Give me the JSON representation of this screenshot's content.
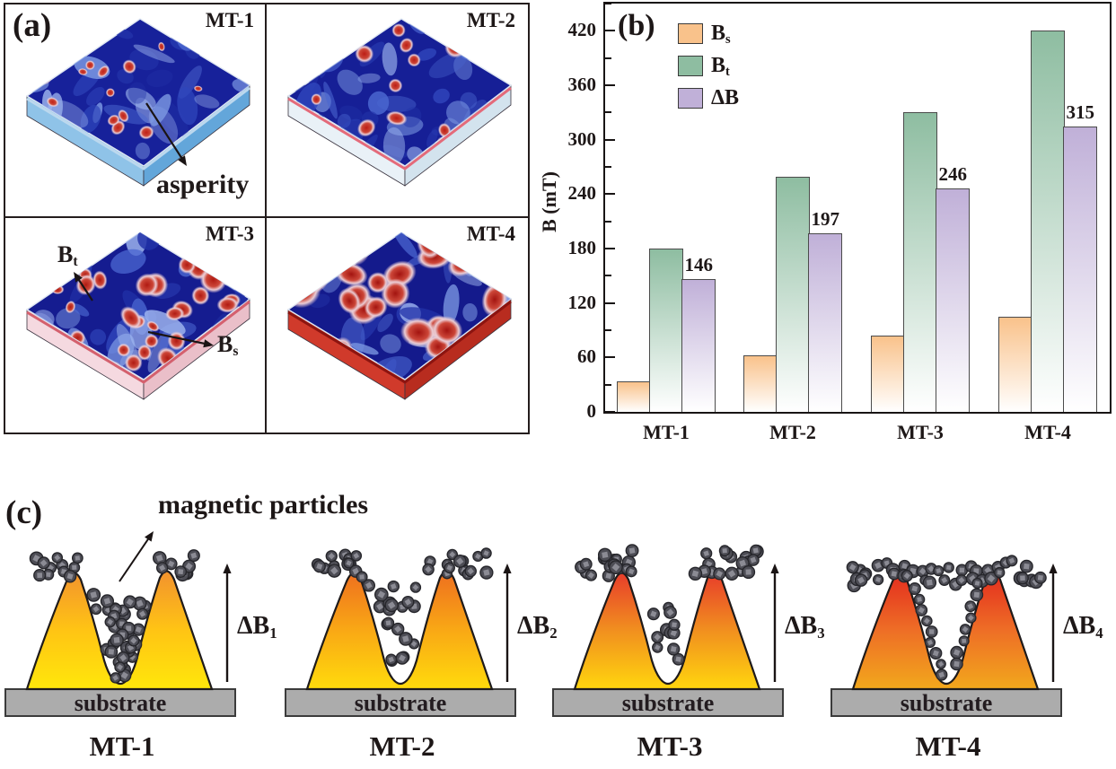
{
  "panel_a": {
    "label": "(a)",
    "annotations": {
      "asperity": "asperity",
      "bt": {
        "base": "B",
        "sub": "t"
      },
      "bs": {
        "base": "B",
        "sub": "s"
      }
    },
    "samples": [
      {
        "label": "MT-1",
        "top_base": "#17219A",
        "side_left": "#8fc3e8",
        "side_right": "#63a6da",
        "rim": "#bcd8ee",
        "spot_count": 16,
        "spot_min": 5,
        "spot_max": 10,
        "red_core": "#c02018",
        "seed": 11
      },
      {
        "label": "MT-2",
        "top_base": "#161F96",
        "side_left": "#e9f1f7",
        "side_right": "#d3e3ee",
        "rim": "#e46a7a",
        "spot_count": 24,
        "spot_min": 6,
        "spot_max": 13,
        "red_core": "#bc1d15",
        "seed": 22
      },
      {
        "label": "MT-3",
        "top_base": "#151C90",
        "side_left": "#f5d9e0",
        "side_right": "#eabfc9",
        "rim": "#d4606e",
        "spot_count": 32,
        "spot_min": 7,
        "spot_max": 15,
        "red_core": "#b01a12",
        "seed": 33
      },
      {
        "label": "MT-4",
        "top_base": "#141A8C",
        "side_left": "#d03a2b",
        "side_right": "#b82c1f",
        "rim": "#8c1410",
        "spot_count": 26,
        "spot_min": 10,
        "spot_max": 21,
        "red_core": "#a31410",
        "seed": 44
      }
    ]
  },
  "panel_b": {
    "label": "(b)",
    "ylabel": "B (mT)",
    "ylim": [
      0,
      450
    ],
    "yticks": [
      0,
      60,
      120,
      180,
      240,
      300,
      360,
      420
    ],
    "categories": [
      "MT-1",
      "MT-2",
      "MT-3",
      "MT-4"
    ],
    "legend": [
      {
        "base": "B",
        "sub": "s",
        "color": "#F9C28B"
      },
      {
        "base": "B",
        "sub": "t",
        "color": "#8EBDA1"
      },
      {
        "base": "ΔB",
        "sub": "",
        "color": "#C0B0D8"
      }
    ],
    "series": [
      {
        "name": "Bs",
        "color": "#F9C28B",
        "values": [
          34,
          62,
          84,
          105
        ]
      },
      {
        "name": "Bt",
        "color": "#8EBDA1",
        "values": [
          180,
          259,
          330,
          420
        ]
      },
      {
        "name": "dB",
        "color": "#C0B0D8",
        "values": [
          146,
          197,
          246,
          315
        ]
      }
    ],
    "data_labels": [
      "146",
      "197",
      "246",
      "315"
    ]
  },
  "panel_c": {
    "label": "(c)",
    "annotation": "magnetic particles",
    "substrate_label": "substrate",
    "items": [
      {
        "label": "MT-1",
        "delta_base": "ΔB",
        "delta_sub": "1",
        "gradient": [
          "#F2922E",
          "#FFC414",
          "#FFE70B"
        ],
        "variant": 0,
        "seed": 7
      },
      {
        "label": "MT-2",
        "delta_base": "ΔB",
        "delta_sub": "2",
        "gradient": [
          "#EE6E1F",
          "#F9A815",
          "#FFDB0C"
        ],
        "variant": 1,
        "seed": 8
      },
      {
        "label": "MT-3",
        "delta_base": "ΔB",
        "delta_sub": "3",
        "gradient": [
          "#E73A2B",
          "#F18F1F",
          "#FFD60E"
        ],
        "variant": 2,
        "seed": 9
      },
      {
        "label": "MT-4",
        "delta_base": "ΔB",
        "delta_sub": "4",
        "gradient": [
          "#E32A1E",
          "#EE6E26",
          "#F2A81C"
        ],
        "variant": 3,
        "seed": 10
      }
    ]
  },
  "chart_data": {
    "type": "bar",
    "categories": [
      "MT-1",
      "MT-2",
      "MT-3",
      "MT-4"
    ],
    "series": [
      {
        "name": "Bs",
        "values": [
          34,
          62,
          84,
          105
        ]
      },
      {
        "name": "Bt",
        "values": [
          180,
          259,
          330,
          420
        ]
      },
      {
        "name": "ΔB",
        "values": [
          146,
          197,
          246,
          315
        ]
      }
    ],
    "title": "",
    "xlabel": "",
    "ylabel": "B (mT)",
    "ylim": [
      0,
      450
    ],
    "grid": false,
    "legend_position": "upper-left",
    "annotations": [
      "146",
      "197",
      "246",
      "315"
    ]
  }
}
